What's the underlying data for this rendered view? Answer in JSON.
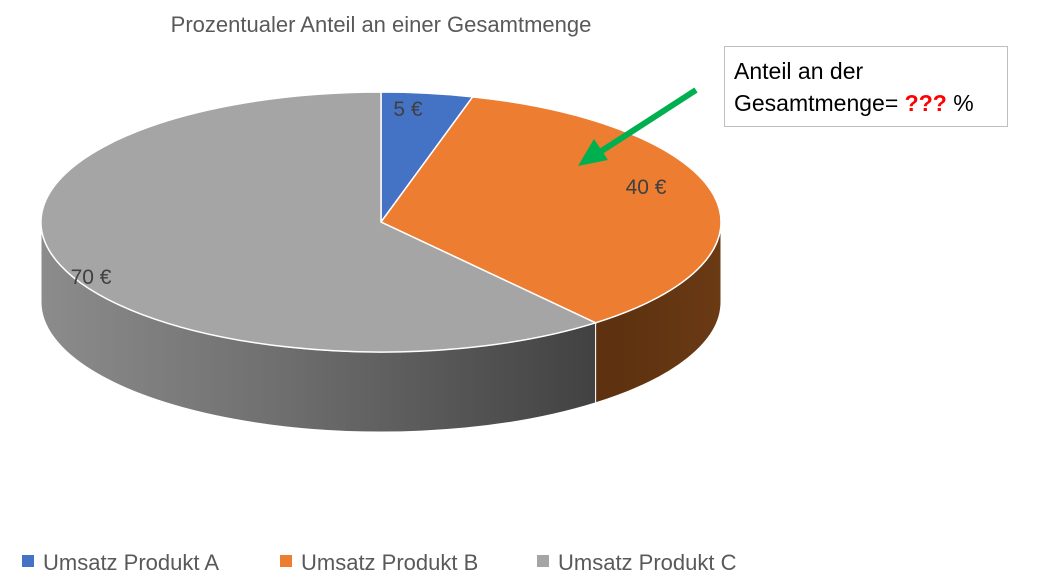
{
  "chart_data": {
    "type": "pie",
    "title": "Prozentualer Anteil an einer Gesamtmenge",
    "three_d": true,
    "slices": [
      {
        "name": "Umsatz Produkt A",
        "value": 5,
        "label": "5 €",
        "color": "#4472c4"
      },
      {
        "name": "Umsatz Produkt B",
        "value": 40,
        "label": "40 €",
        "color": "#ed7d31"
      },
      {
        "name": "Umsatz Produkt C",
        "value": 70,
        "label": "70 €",
        "color": "#a5a5a5"
      }
    ],
    "legend_position": "bottom"
  },
  "callout": {
    "line1": "Anteil an der",
    "line2_prefix": "Gesamtmenge=",
    "placeholder": "???",
    "suffix": "%"
  },
  "arrow_color": "#00b050"
}
